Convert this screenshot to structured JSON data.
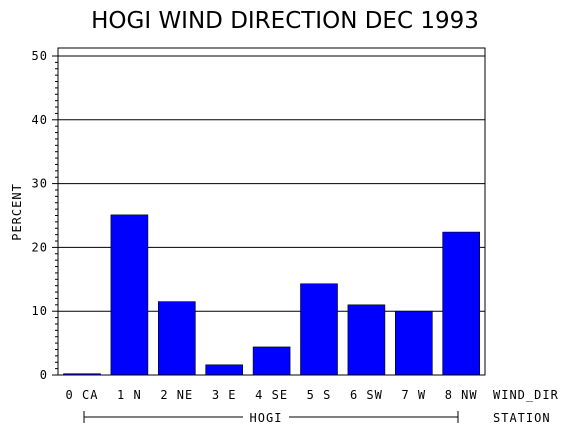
{
  "chart_data": {
    "type": "bar",
    "title": "HOGI WIND DIRECTION DEC 1993",
    "ylabel": "PERCENT",
    "xlabel": "WIND_DIR",
    "group_axis_label": "STATION",
    "group_label": "HOGI",
    "ylim": [
      0,
      50
    ],
    "yticks": [
      "0",
      "10",
      "20",
      "30",
      "40",
      "50"
    ],
    "grid": true,
    "categories": [
      "0 CA",
      "1 N",
      "2 NE",
      "3 E",
      "4 SE",
      "5 S",
      "6 SW",
      "7 W",
      "8 NW"
    ],
    "values": [
      0.2,
      25.1,
      11.5,
      1.6,
      4.4,
      14.3,
      11.0,
      10.0,
      22.4
    ],
    "bar_color": "#0000FF"
  }
}
